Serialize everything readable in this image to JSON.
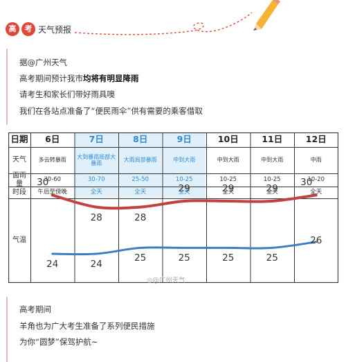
{
  "header": {
    "badge1": "高",
    "badge2": "考",
    "title": "天气预报"
  },
  "intro": {
    "line1": "据@广州天气",
    "line2_prefix": "高考期间预计我市",
    "line2_bold": "均将有明显降雨",
    "line3": "请考生和家长们带好雨具噢",
    "line4": "我们在各站点准备了“便民雨伞”供有需要的乘客借取"
  },
  "table": {
    "row_labels": {
      "date": "日期",
      "weather": "天气",
      "rain": "面雨量",
      "period": "时段",
      "temp": "气温"
    },
    "days": [
      {
        "date": "6日",
        "weather": "多云转暴雨",
        "rain": "30-60",
        "period": "午后至傍晚",
        "high": 30,
        "low": 24,
        "highlight": false
      },
      {
        "date": "7日",
        "weather": "大到暴雨局部大暴雨",
        "rain": "30-70",
        "period": "全天",
        "high": 28,
        "low": 24,
        "highlight": true
      },
      {
        "date": "8日",
        "weather": "大雨局部暴雨",
        "rain": "25-50",
        "period": "全天",
        "high": 28,
        "low": 25,
        "highlight": true
      },
      {
        "date": "9日",
        "weather": "中到大雨",
        "rain": "10-25",
        "period": "全天",
        "high": 29,
        "low": 25,
        "highlight": true
      },
      {
        "date": "10日",
        "weather": "中到大雨",
        "rain": "10-25",
        "period": "全天",
        "high": 29,
        "low": 25,
        "highlight": false
      },
      {
        "date": "11日",
        "weather": "中到大雨",
        "rain": "10-25",
        "period": "全天",
        "high": 29,
        "low": 25,
        "highlight": false
      },
      {
        "date": "12日",
        "weather": "中雨",
        "rain": "10-20",
        "period": "全天",
        "high": 30,
        "low": 26,
        "highlight": false
      }
    ],
    "watermark": "@广州天气",
    "colors": {
      "high_line": "#c0433f",
      "low_line": "#3f7cc0",
      "highlight_text": "#2b8ad3",
      "grid": "#333333",
      "highlight_fill": "#dff0fb"
    }
  },
  "outro": {
    "line1": "高考期间",
    "line2": "羊角也为广大考生准备了系列便民措施",
    "line3": "为你“圆梦”保驾护航~"
  }
}
